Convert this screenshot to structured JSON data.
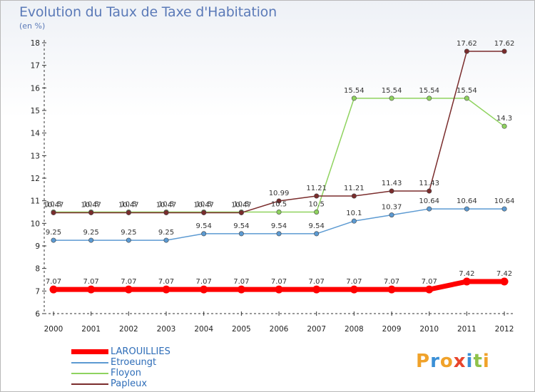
{
  "chart_data": {
    "type": "line",
    "title": "Evolution du Taux de Taxe d'Habitation",
    "subtitle": "(en %)",
    "x": [
      "2000",
      "2001",
      "2002",
      "2003",
      "2004",
      "2005",
      "2006",
      "2007",
      "2008",
      "2009",
      "2010",
      "2011",
      "2012"
    ],
    "ylim": [
      6,
      18
    ],
    "yticks": [
      6,
      7,
      8,
      9,
      10,
      11,
      12,
      13,
      14,
      15,
      16,
      17,
      18
    ],
    "grid": false,
    "legend_position": "bottom-left",
    "series": [
      {
        "name": "LAROUILLIES",
        "color": "#ff0000",
        "values": [
          7.07,
          7.07,
          7.07,
          7.07,
          7.07,
          7.07,
          7.07,
          7.07,
          7.07,
          7.07,
          7.07,
          7.42,
          7.42
        ],
        "labels": [
          "7.07",
          "7.07",
          "7.07",
          "7.07",
          "7.07",
          "7.07",
          "7.07",
          "7.07",
          "7.07",
          "7.07",
          "7.07",
          "7.42",
          "7.42"
        ]
      },
      {
        "name": "Etroeungt",
        "color": "#5c9ad2",
        "values": [
          9.25,
          9.25,
          9.25,
          9.25,
          9.54,
          9.54,
          9.54,
          9.54,
          10.1,
          10.37,
          10.64,
          10.64,
          10.64
        ],
        "labels": [
          "9.25",
          "9.25",
          "9.25",
          "9.25",
          "9.54",
          "9.54",
          "9.54",
          "9.54",
          "10.1",
          "10.37",
          "10.64",
          "10.64",
          "10.64"
        ]
      },
      {
        "name": "Floyon",
        "color": "#8fd35f",
        "values": [
          10.5,
          10.5,
          10.5,
          10.5,
          10.5,
          10.5,
          10.5,
          10.5,
          15.54,
          15.54,
          15.54,
          15.54,
          14.3
        ],
        "labels": [
          "10.5",
          "10.5",
          "10.5",
          "10.5",
          "10.5",
          "10.5",
          "10.5",
          "10.5",
          "15.54",
          "15.54",
          "15.54",
          "15.54",
          "14.3"
        ]
      },
      {
        "name": "Papleux",
        "color": "#7a2c2c",
        "values": [
          10.47,
          10.47,
          10.47,
          10.47,
          10.47,
          10.47,
          10.99,
          11.21,
          11.21,
          11.43,
          11.43,
          17.62,
          17.62
        ],
        "labels": [
          "10.47",
          "10.47",
          "10.47",
          "10.47",
          "10.47",
          "10.47",
          "10.99",
          "11.21",
          "11.21",
          "11.43",
          "11.43",
          "17.62",
          "17.62"
        ]
      }
    ]
  },
  "brand": {
    "logo_text": "Proxiti"
  }
}
